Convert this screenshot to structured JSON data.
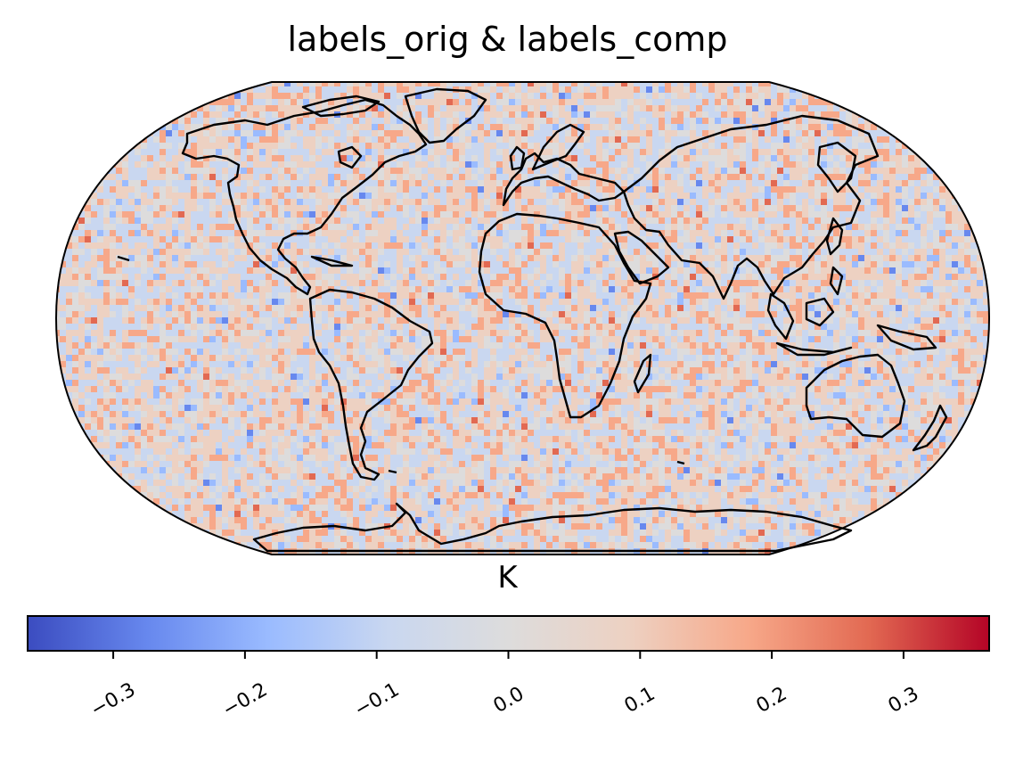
{
  "title": "labels_orig & labels_comp",
  "colorbar": {
    "label": "K",
    "colormap": "coolwarm",
    "range": [
      -0.365,
      0.365
    ],
    "ticks": [
      -0.3,
      -0.2,
      -0.1,
      0.0,
      0.1,
      0.2,
      0.3
    ],
    "tick_labels": [
      "−0.3",
      "−0.2",
      "−0.1",
      "0.0",
      "0.1",
      "0.2",
      "0.3"
    ],
    "colors": [
      "#3b4cc0",
      "#6788ee",
      "#9abbff",
      "#c9d7f0",
      "#dddcdc",
      "#edd1c2",
      "#f7a889",
      "#e26952",
      "#b40426"
    ]
  },
  "map": {
    "projection": "Robinson",
    "features": [
      "coastlines"
    ],
    "field_description": "noisy near-zero difference field"
  }
}
